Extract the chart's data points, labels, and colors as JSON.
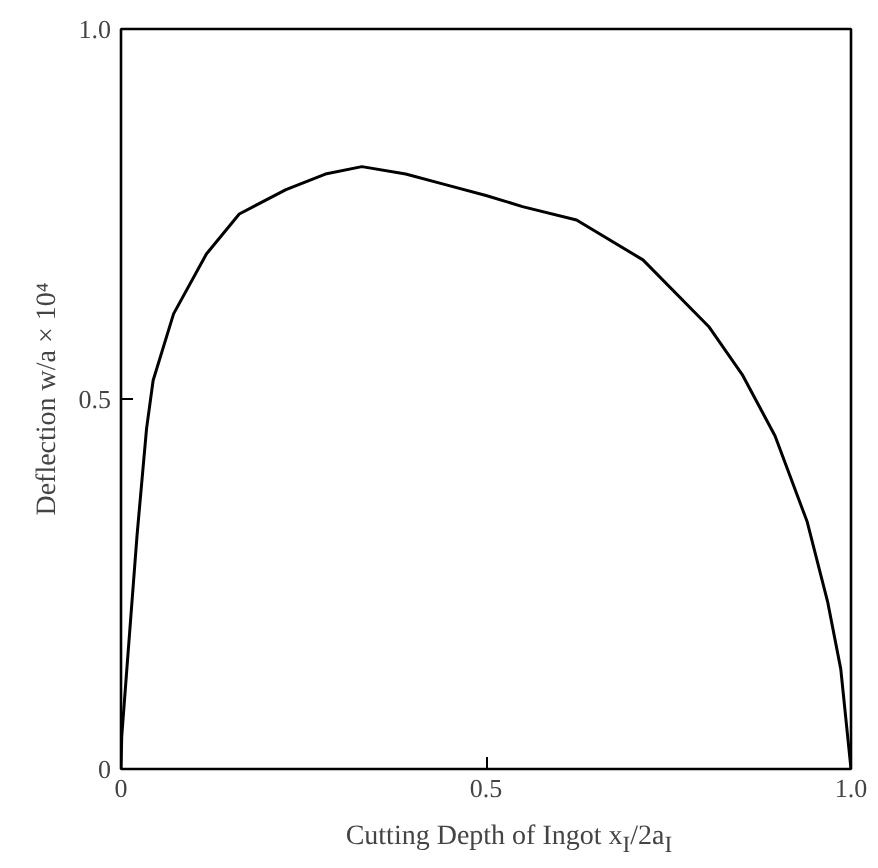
{
  "chart_data": {
    "type": "line",
    "xlabel": "Cutting Depth of Ingot x$_{I}$/2a$_{I}$",
    "ylabel": "Deflection w/a × 10⁴",
    "xlim": [
      0,
      1.0
    ],
    "ylim": [
      0,
      1.0
    ],
    "xticks": [
      0,
      0.5,
      {
        "value": 1.0,
        "label": "1.0"
      }
    ],
    "yticks": [
      0,
      0.5,
      {
        "value": 1.0,
        "label": "1.0"
      }
    ],
    "series": [
      {
        "color": "#000000",
        "x": [
          0,
          0.001,
          0.008,
          0.022,
          0.035,
          0.044,
          0.072,
          0.117,
          0.162,
          0.226,
          0.28,
          0.33,
          0.39,
          0.443,
          0.5,
          0.55,
          0.624,
          0.715,
          0.805,
          0.851,
          0.896,
          0.94,
          0.968,
          0.986,
          1.0
        ],
        "values": [
          0,
          0.044,
          0.135,
          0.316,
          0.46,
          0.525,
          0.615,
          0.696,
          0.75,
          0.783,
          0.804,
          0.814,
          0.804,
          0.79,
          0.775,
          0.76,
          0.742,
          0.688,
          0.598,
          0.533,
          0.45,
          0.334,
          0.226,
          0.135,
          0
        ]
      }
    ],
    "grid": false,
    "marker": "none",
    "line_style": "solid"
  }
}
